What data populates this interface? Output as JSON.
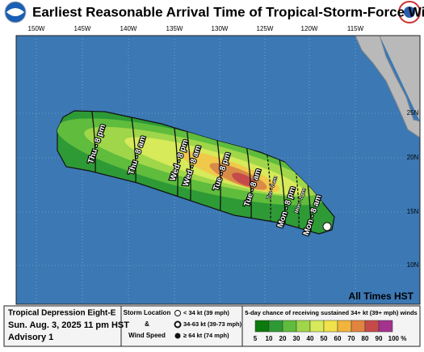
{
  "header": {
    "title": "Earliest Reasonable Arrival Time of Tropical-Storm-Force Winds"
  },
  "map": {
    "longitudes": [
      "150W",
      "145W",
      "140W",
      "135W",
      "130W",
      "125W",
      "120W",
      "115W"
    ],
    "latitudes": [
      "25N",
      "20N",
      "15N",
      "10N"
    ],
    "time_labels": [
      "Thu - 8 pm",
      "Thu - 8 am",
      "Wed - 8 pm",
      "Wed - 8 am",
      "Tue - 8 pm",
      "Tue - 8 am",
      "Tue - 2 am",
      "Mon - 8 pm",
      "Mon - 2 pm",
      "Mon - 8 am"
    ],
    "note": "All Times HST"
  },
  "footer": {
    "storm": "Tropical Depression Eight-E",
    "date": "Sun. Aug. 3, 2025  11 pm HST",
    "advisory": "Advisory 1",
    "legend": {
      "storm_location": "Storm Location",
      "amp": "&",
      "wind_speed": "Wind Speed",
      "items": [
        "< 34 kt (39 mph)",
        "34-63 kt (39-73 mph)",
        "≥ 64 kt (74 mph)"
      ]
    },
    "scale": {
      "title": "5-day chance of receiving sustained 34+ kt (39+ mph) winds",
      "labels": [
        "5",
        "10",
        "20",
        "30",
        "40",
        "50",
        "60",
        "70",
        "80",
        "90",
        "100 %"
      ]
    }
  }
}
